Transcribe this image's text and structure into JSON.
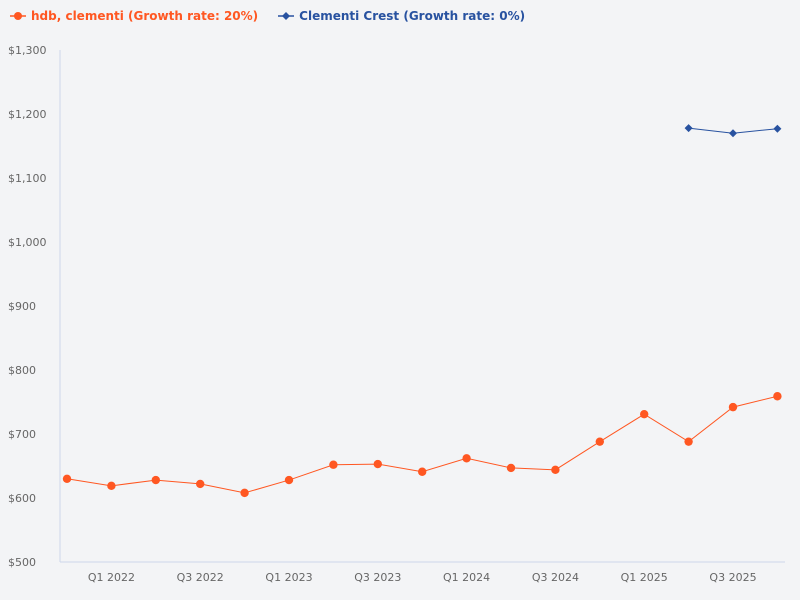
{
  "chart_data": {
    "type": "line",
    "title": "",
    "xlabel": "",
    "ylabel": "",
    "ylim": [
      500,
      1300
    ],
    "y_ticks": [
      500,
      600,
      700,
      800,
      900,
      1000,
      1100,
      1200,
      1300
    ],
    "y_tick_labels": [
      "$500",
      "$600",
      "$700",
      "$800",
      "$900",
      "$1,000",
      "$1,100",
      "$1,200",
      "$1,300"
    ],
    "categories": [
      "Q4 2021",
      "Q1 2022",
      "Q2 2022",
      "Q3 2022",
      "Q4 2022",
      "Q1 2023",
      "Q2 2023",
      "Q3 2023",
      "Q4 2023",
      "Q1 2024",
      "Q2 2024",
      "Q3 2024",
      "Q4 2024",
      "Q1 2025",
      "Q2 2025",
      "Q3 2025",
      "Q4 2025"
    ],
    "x_tick_labels": [
      "Q1 2022",
      "Q3 2022",
      "Q1 2023",
      "Q3 2023",
      "Q1 2024",
      "Q3 2024",
      "Q1 2025",
      "Q3 2025"
    ],
    "grid": false,
    "legend_placement": "top-left",
    "series": [
      {
        "name": "hdb, clementi (Growth rate: 20%)",
        "color": "#ff5722",
        "marker": "circle",
        "values": [
          630,
          619,
          628,
          622,
          608,
          628,
          652,
          653,
          641,
          662,
          647,
          644,
          688,
          731,
          688,
          742,
          759
        ]
      },
      {
        "name": "Clementi Crest (Growth rate: 0%)",
        "color": "#2852a0",
        "marker": "diamond",
        "values": [
          null,
          null,
          null,
          null,
          null,
          null,
          null,
          null,
          null,
          null,
          null,
          null,
          null,
          null,
          1178,
          1170,
          1177
        ]
      }
    ]
  }
}
